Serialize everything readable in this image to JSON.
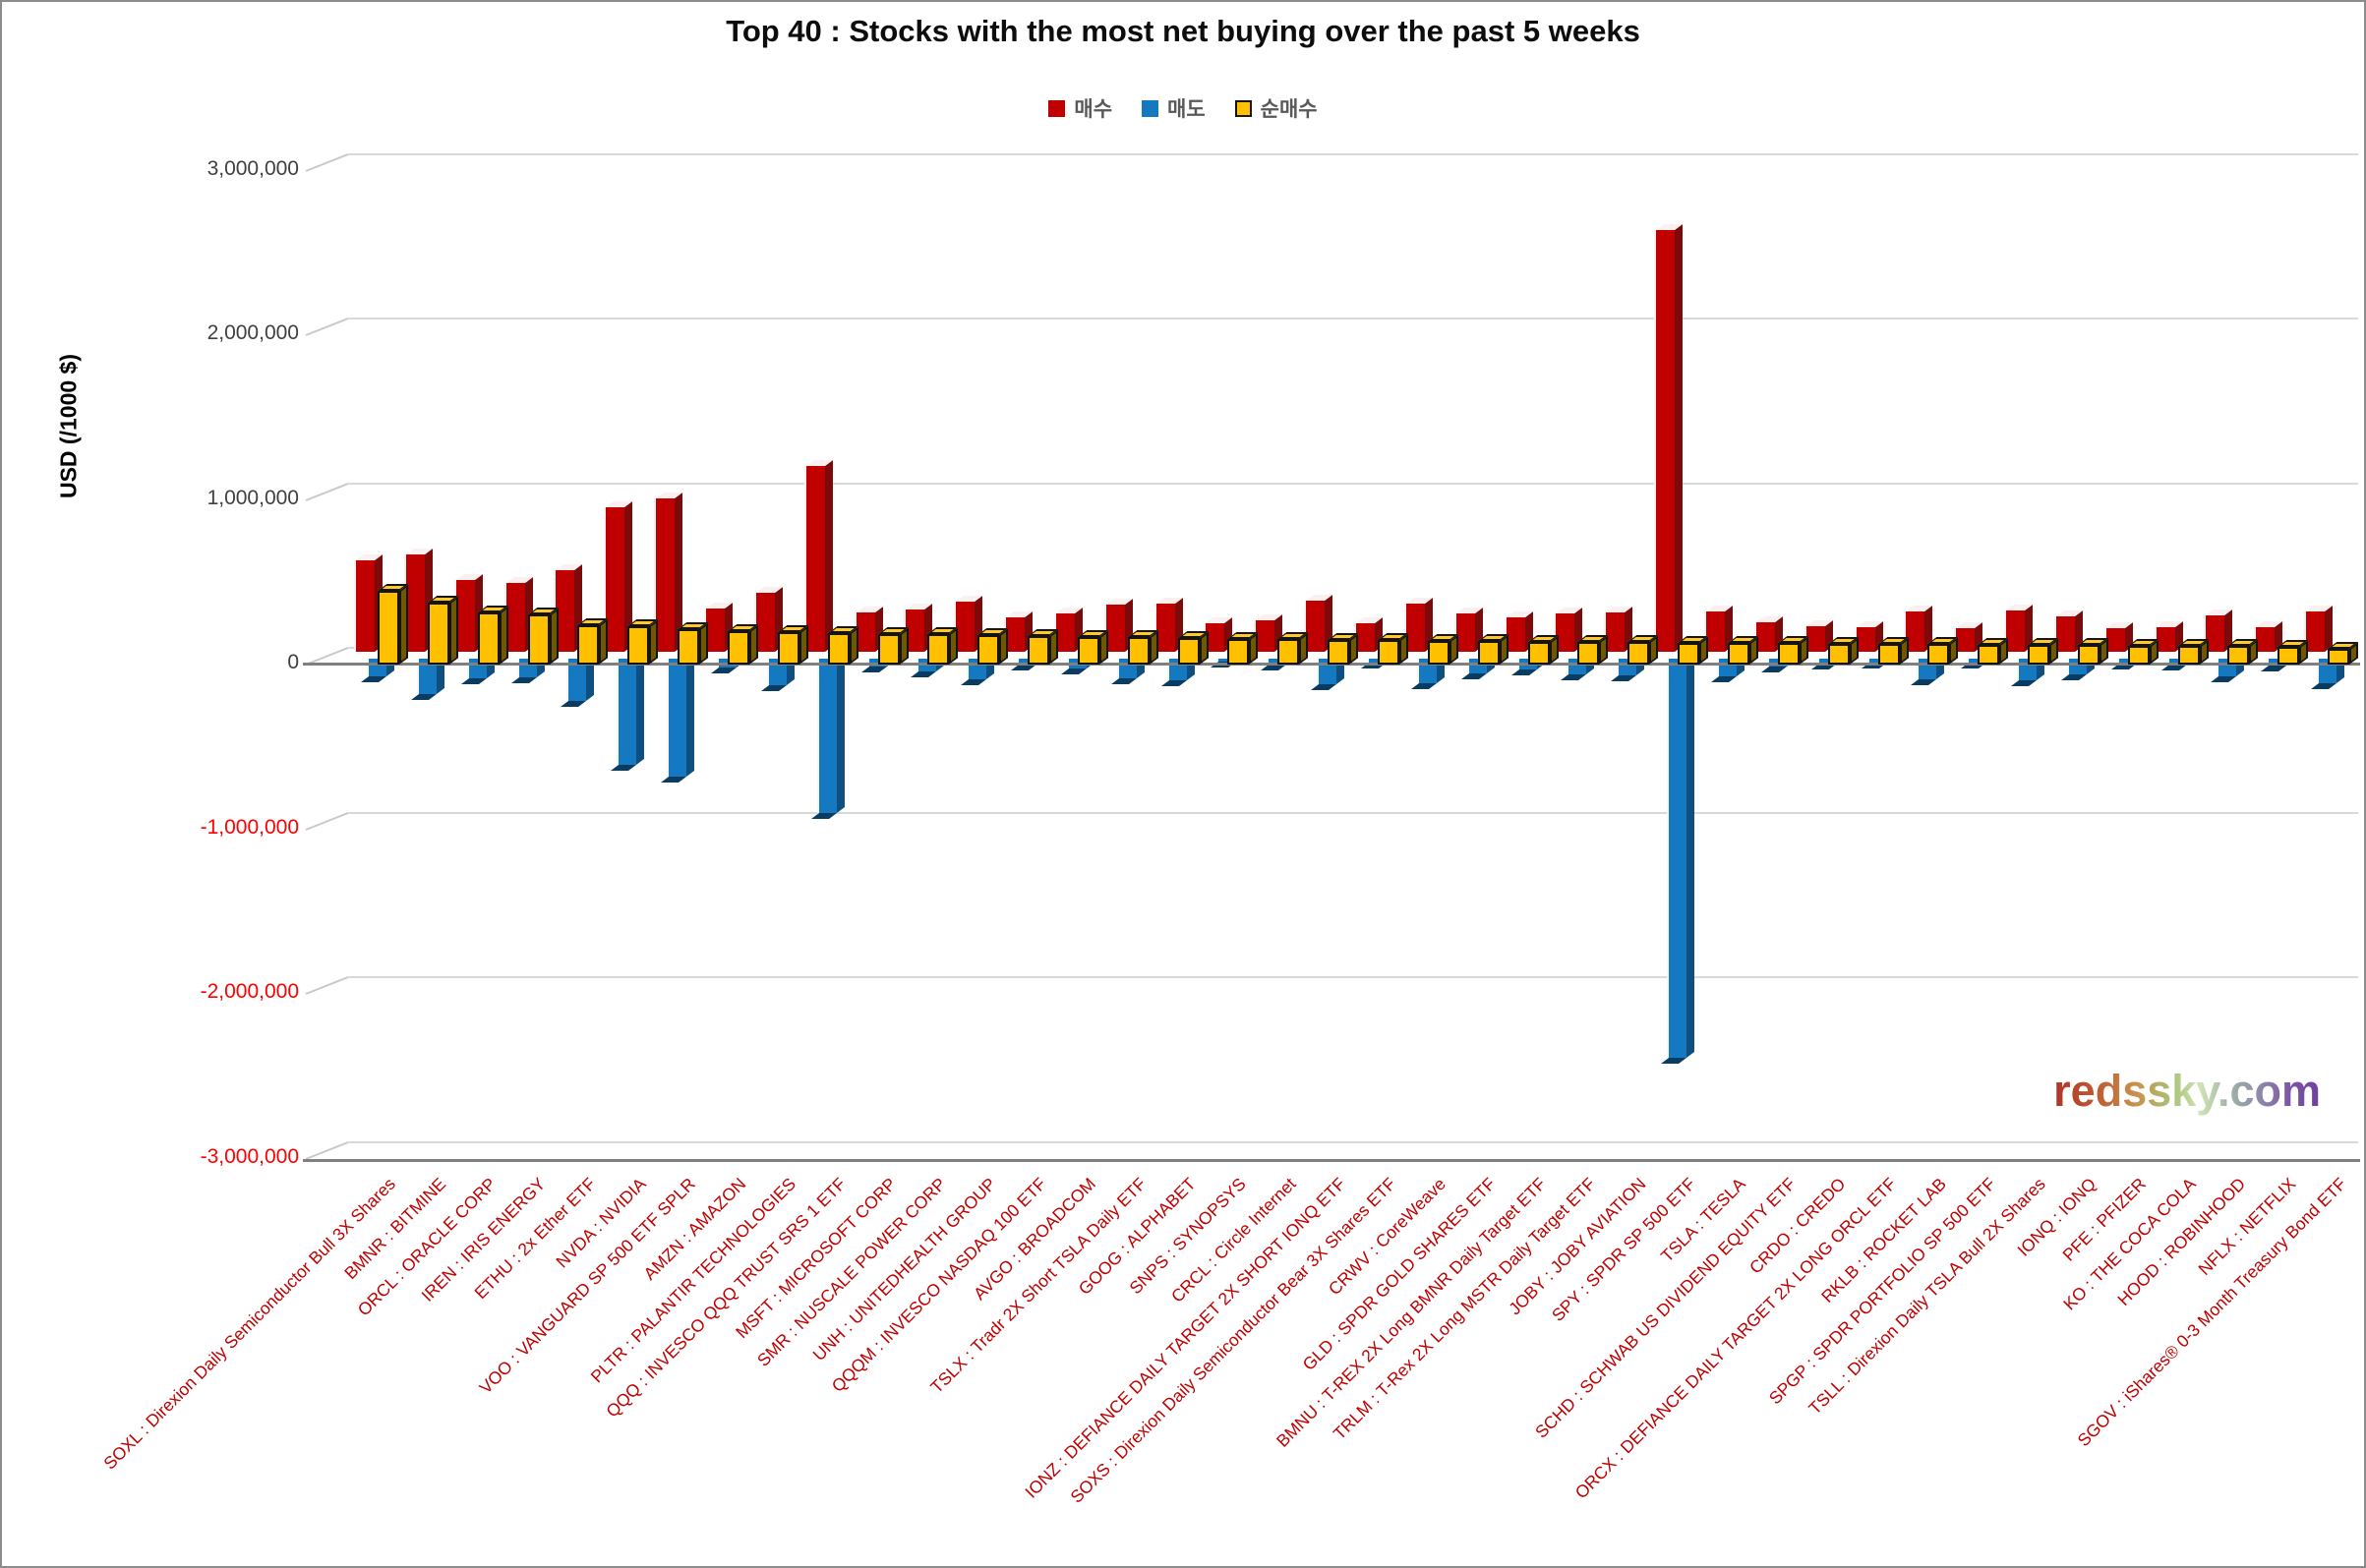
{
  "title": "Top 40 : Stocks with the most net buying over the past 5 weeks",
  "watermark": "redssky.com",
  "legend": [
    {
      "label": "매수",
      "color": "#c00000",
      "bordered": false
    },
    {
      "label": "매도",
      "color": "#1579c2",
      "bordered": false
    },
    {
      "label": "순매수",
      "color": "#ffc000",
      "bordered": true
    }
  ],
  "y_axis": {
    "title": "USD (/1000 $)",
    "tick_labels": [
      "3,000,000",
      "2,000,000",
      "1,000,000",
      "0",
      "-1,000,000",
      "-2,000,000",
      "-3,000,000"
    ],
    "tick_values": [
      3000000,
      2000000,
      1000000,
      0,
      -1000000,
      -2000000,
      -3000000
    ]
  },
  "colors": {
    "buy_front": "#c00000",
    "buy_side": "#7b0a0a",
    "buy_top": "#faf0f0",
    "sell_front": "#1579c2",
    "sell_side": "#0e4f80",
    "sell_bottom": "#0a3c62",
    "net_front": "#ffc000",
    "net_side": "#6f5800",
    "net_top": "#ffc92b",
    "net_outline": "#141414",
    "gridline": "#d9d9d9",
    "axis": "#808080",
    "x_label": "#c00000",
    "neg_tick": "#ff0000"
  },
  "chart_data": {
    "type": "bar",
    "title": "Top 40 : Stocks with the most net buying over the past 5 weeks",
    "xlabel": "",
    "ylabel": "USD (/1000 $)",
    "ylim": [
      -3000000,
      3000000
    ],
    "grid": true,
    "legend_position": "top",
    "style": "3d-clustered-column",
    "categories": [
      "SOXL : Direxion Daily Semiconductor Bull 3X Shares",
      "BMNR : BITMINE",
      "ORCL : ORACLE CORP",
      "IREN : IRIS ENERGY",
      "ETHU : 2x Ether ETF",
      "NVDA : NVIDIA",
      "VOO : VANGUARD SP 500 ETF SPLR",
      "AMZN : AMAZON",
      "PLTR : PALANTIR TECHNOLOGIES",
      "QQQ : INVESCO QQQ TRUST SRS 1 ETF",
      "MSFT : MICROSOFT CORP",
      "SMR : NUSCALE POWER CORP",
      "UNH : UNITEDHEALTH GROUP",
      "QQQM : INVESCO NASDAQ 100 ETF",
      "AVGO : BROADCOM",
      "TSLX : Tradr 2X Short TSLA Daily ETF",
      "GOOG : ALPHABET",
      "SNPS : SYNOPSYS",
      "CRCL : Circle Internet",
      "IONZ : DEFIANCE DAILY TARGET 2X SHORT IONQ ETF",
      "SOXS : Direxion Daily Semiconductor Bear 3X Shares ETF",
      "CRWV : CoreWeave",
      "GLD : SPDR GOLD SHARES ETF",
      "BMNU : T-REX 2X Long BMNR Daily Target ETF",
      "TRLM : T-Rex 2X Long MSTR Daily Target ETF",
      "JOBY : JOBY AVIATION",
      "SPY : SPDR SP 500 ETF",
      "TSLA : TESLA",
      "SCHD : SCHWAB US DIVIDEND EQUITY ETF",
      "CRDO : CREDO",
      "ORCX : DEFIANCE DAILY TARGET 2X LONG ORCL ETF",
      "RKLB : ROCKET LAB",
      "SPGP : SPDR PORTFOLIO SP 500 ETF",
      "TSLL : Direxion Daily TSLA Bull 2X Shares",
      "IONQ : IONQ",
      "PFE : PFIZER",
      "KO : THE COCA COLA",
      "HOOD : ROBINHOOD",
      "NFLX : NETFLIX",
      "SGOV : iShares® 0-3 Month Treasury Bond ETF"
    ],
    "series": [
      {
        "name": "매수",
        "values": [
          555000,
          590000,
          435000,
          420000,
          495000,
          880000,
          930000,
          260000,
          360000,
          1130000,
          237000,
          258000,
          303000,
          208000,
          232000,
          285000,
          292000,
          176000,
          190000,
          310000,
          174000,
          293000,
          233000,
          208000,
          233000,
          238000,
          2560000,
          242000,
          180000,
          155000,
          148000,
          247000,
          144000,
          251000,
          214000,
          143000,
          147000,
          221000,
          151000,
          245000
        ]
      },
      {
        "name": "매도",
        "values": [
          -105000,
          -215000,
          -120000,
          -115000,
          -255000,
          -645000,
          -715000,
          -55000,
          -162000,
          -938000,
          -49000,
          -75000,
          -125000,
          -34000,
          -62000,
          -119000,
          -130000,
          -18000,
          -35000,
          -158000,
          -25000,
          -147000,
          -90000,
          -68000,
          -95000,
          -102000,
          -2426000,
          -110000,
          -50000,
          -27000,
          -22000,
          -123000,
          -22000,
          -131000,
          -96000,
          -27000,
          -33000,
          -109000,
          -41000,
          -150000
        ]
      },
      {
        "name": "순매수",
        "values": [
          450000,
          375000,
          315000,
          305000,
          240000,
          235000,
          215000,
          205000,
          198000,
          192000,
          188000,
          183000,
          178000,
          174000,
          170000,
          166000,
          162000,
          158000,
          155000,
          152000,
          149000,
          146000,
          143000,
          140000,
          138000,
          136000,
          134000,
          132000,
          130000,
          128000,
          126000,
          124000,
          122000,
          120000,
          118000,
          116000,
          114000,
          112000,
          110000,
          95000
        ]
      }
    ]
  }
}
